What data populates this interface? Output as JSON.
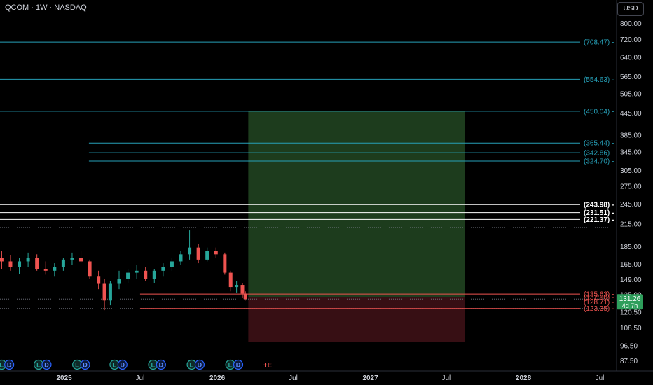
{
  "header": {
    "symbol": "QCOM · 1W · NASDAQ",
    "currency": "USD"
  },
  "colors": {
    "background": "#000000",
    "axis_text": "#d1d4dc",
    "up": "#26a69a",
    "down": "#ef5350",
    "fib_line": "#26a0b8",
    "white_line": "#ffffff",
    "red_line": "#ef5350",
    "profit_zone": "#1f3f1f",
    "loss_zone": "#3a1015",
    "price_badge": "#2e9e5b"
  },
  "chart_data": {
    "type": "candlestick",
    "y_scale": "log",
    "ylim": [
      83,
      900
    ],
    "y_ticks": [
      "87.50",
      "96.50",
      "108.50",
      "120.50",
      "135.00",
      "149.00",
      "165.00",
      "185.00",
      "215.00",
      "245.00",
      "275.00",
      "305.00",
      "345.00",
      "385.00",
      "445.00",
      "505.00",
      "565.00",
      "640.00",
      "720.00",
      "800.00"
    ],
    "x_ticks": [
      "2025",
      "Jul",
      "2026",
      "Jul",
      "2027",
      "Jul",
      "2028",
      "Jul"
    ],
    "x_tick_dates": [
      "2025-01-01",
      "2025-07-01",
      "2026-01-01",
      "2026-07-01",
      "2027-01-01",
      "2027-07-01",
      "2028-01-01",
      "2028-07-01"
    ],
    "candles": [
      {
        "date": "2024-08-05",
        "o": 172,
        "h": 180,
        "l": 160,
        "c": 168
      },
      {
        "date": "2024-08-26",
        "o": 168,
        "h": 175,
        "l": 158,
        "c": 162
      },
      {
        "date": "2024-09-16",
        "o": 162,
        "h": 172,
        "l": 155,
        "c": 168
      },
      {
        "date": "2024-10-07",
        "o": 168,
        "h": 178,
        "l": 162,
        "c": 172
      },
      {
        "date": "2024-10-28",
        "o": 172,
        "h": 176,
        "l": 158,
        "c": 160
      },
      {
        "date": "2024-11-18",
        "o": 160,
        "h": 168,
        "l": 154,
        "c": 158
      },
      {
        "date": "2024-12-09",
        "o": 158,
        "h": 166,
        "l": 152,
        "c": 162
      },
      {
        "date": "2024-12-30",
        "o": 162,
        "h": 172,
        "l": 158,
        "c": 170
      },
      {
        "date": "2025-01-20",
        "o": 170,
        "h": 178,
        "l": 164,
        "c": 172
      },
      {
        "date": "2025-02-10",
        "o": 172,
        "h": 180,
        "l": 166,
        "c": 168
      },
      {
        "date": "2025-03-03",
        "o": 168,
        "h": 170,
        "l": 150,
        "c": 152
      },
      {
        "date": "2025-03-24",
        "o": 152,
        "h": 158,
        "l": 140,
        "c": 145
      },
      {
        "date": "2025-04-07",
        "o": 145,
        "h": 150,
        "l": 122,
        "c": 130
      },
      {
        "date": "2025-04-21",
        "o": 130,
        "h": 148,
        "l": 126,
        "c": 145
      },
      {
        "date": "2025-05-12",
        "o": 145,
        "h": 158,
        "l": 140,
        "c": 150
      },
      {
        "date": "2025-06-02",
        "o": 150,
        "h": 160,
        "l": 146,
        "c": 156
      },
      {
        "date": "2025-06-23",
        "o": 156,
        "h": 164,
        "l": 150,
        "c": 158
      },
      {
        "date": "2025-07-14",
        "o": 158,
        "h": 162,
        "l": 148,
        "c": 150
      },
      {
        "date": "2025-08-04",
        "o": 150,
        "h": 160,
        "l": 146,
        "c": 158
      },
      {
        "date": "2025-08-25",
        "o": 158,
        "h": 166,
        "l": 152,
        "c": 162
      },
      {
        "date": "2025-09-15",
        "o": 162,
        "h": 172,
        "l": 158,
        "c": 168
      },
      {
        "date": "2025-10-06",
        "o": 168,
        "h": 180,
        "l": 164,
        "c": 176
      },
      {
        "date": "2025-10-27",
        "o": 176,
        "h": 206,
        "l": 170,
        "c": 184
      },
      {
        "date": "2025-11-17",
        "o": 184,
        "h": 188,
        "l": 166,
        "c": 170
      },
      {
        "date": "2025-12-08",
        "o": 170,
        "h": 184,
        "l": 168,
        "c": 180
      },
      {
        "date": "2025-12-29",
        "o": 180,
        "h": 184,
        "l": 172,
        "c": 176
      },
      {
        "date": "2026-01-19",
        "o": 176,
        "h": 178,
        "l": 154,
        "c": 156
      },
      {
        "date": "2026-02-02",
        "o": 156,
        "h": 158,
        "l": 138,
        "c": 142
      },
      {
        "date": "2026-02-16",
        "o": 142,
        "h": 148,
        "l": 137,
        "c": 144
      },
      {
        "date": "2026-03-02",
        "o": 144,
        "h": 146,
        "l": 132,
        "c": 136
      },
      {
        "date": "2026-03-09",
        "o": 136,
        "h": 138,
        "l": 130,
        "c": 131.26
      }
    ],
    "levels": [
      {
        "label": "(708.47)",
        "value": 708.47,
        "color": "fib",
        "x_from": "2024-08-01"
      },
      {
        "label": "(554.63)",
        "value": 554.63,
        "color": "fib",
        "x_from": "2024-08-01"
      },
      {
        "label": "(450.04)",
        "value": 450.04,
        "color": "fib",
        "x_from": "2024-08-01"
      },
      {
        "label": "(365.44)",
        "value": 365.44,
        "color": "fib",
        "x_from": "2025-03-01"
      },
      {
        "label": "(342.86)",
        "value": 342.86,
        "color": "fib",
        "x_from": "2025-03-01"
      },
      {
        "label": "(324.70)",
        "value": 324.7,
        "color": "fib",
        "x_from": "2025-03-01"
      },
      {
        "label": "(243.98)",
        "value": 243.98,
        "color": "white",
        "x_from": "2024-08-01"
      },
      {
        "label": "(231.51)",
        "value": 231.51,
        "color": "white",
        "x_from": "2024-08-01"
      },
      {
        "label": "(221.37)",
        "value": 221.37,
        "color": "white",
        "x_from": "2024-08-01"
      },
      {
        "label": "(135.63)",
        "value": 135.63,
        "color": "red",
        "x_from": "2025-07-01"
      },
      {
        "label": "(132.90)",
        "value": 132.9,
        "color": "red",
        "x_from": "2025-07-01"
      },
      {
        "label": "(128.71)",
        "value": 128.71,
        "color": "red",
        "x_from": "2025-07-01"
      },
      {
        "label": "(123.35)",
        "value": 123.35,
        "color": "red",
        "x_from": "2025-07-01"
      }
    ],
    "dotted_levels": [
      210,
      131.26,
      123.35
    ],
    "position": {
      "x_start": "2026-03-16",
      "x_end": "2027-08-15",
      "entry": 132.9,
      "target": 450.04,
      "stop": 99
    },
    "last_price": {
      "value": "131.26",
      "countdown": "4d 7h"
    },
    "events": [
      {
        "date": "2024-08-05",
        "label": "E",
        "kind": "earnings"
      },
      {
        "date": "2024-08-23",
        "label": "D",
        "kind": "dividend"
      },
      {
        "date": "2024-11-01",
        "label": "E",
        "kind": "earnings"
      },
      {
        "date": "2024-11-20",
        "label": "D",
        "kind": "dividend"
      },
      {
        "date": "2025-02-01",
        "label": "E",
        "kind": "earnings"
      },
      {
        "date": "2025-02-20",
        "label": "D",
        "kind": "dividend"
      },
      {
        "date": "2025-05-01",
        "label": "E",
        "kind": "earnings"
      },
      {
        "date": "2025-05-20",
        "label": "D",
        "kind": "dividend"
      },
      {
        "date": "2025-08-01",
        "label": "E",
        "kind": "earnings"
      },
      {
        "date": "2025-08-20",
        "label": "D",
        "kind": "dividend"
      },
      {
        "date": "2025-11-01",
        "label": "E",
        "kind": "earnings"
      },
      {
        "date": "2025-11-20",
        "label": "D",
        "kind": "dividend"
      },
      {
        "date": "2026-02-01",
        "label": "E",
        "kind": "earnings"
      },
      {
        "date": "2026-02-20",
        "label": "D",
        "kind": "dividend"
      },
      {
        "date": "2026-05-01",
        "label": "+E",
        "kind": "upcoming"
      }
    ]
  }
}
